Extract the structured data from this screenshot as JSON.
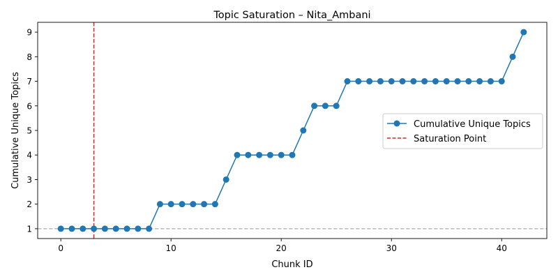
{
  "chart_data": {
    "type": "line",
    "title": "Topic Saturation – Nita_Ambani",
    "xlabel": "Chunk ID",
    "ylabel": "Cumulative Unique Topics",
    "xlim": [
      -2.1,
      44.1
    ],
    "ylim": [
      0.6,
      9.4
    ],
    "xticks": [
      0,
      10,
      20,
      30,
      40
    ],
    "yticks": [
      1,
      2,
      3,
      4,
      5,
      6,
      7,
      8,
      9
    ],
    "grid": false,
    "legend_position": "center-right",
    "series": [
      {
        "name": "Cumulative Unique Topics",
        "color": "#1f77b4",
        "marker": "circle",
        "x": [
          0,
          1,
          2,
          3,
          4,
          5,
          6,
          7,
          8,
          9,
          10,
          11,
          12,
          13,
          14,
          15,
          16,
          17,
          18,
          19,
          20,
          21,
          22,
          23,
          24,
          25,
          26,
          27,
          28,
          29,
          30,
          31,
          32,
          33,
          34,
          35,
          36,
          37,
          38,
          39,
          40,
          41,
          42
        ],
        "y": [
          1,
          1,
          1,
          1,
          1,
          1,
          1,
          1,
          1,
          2,
          2,
          2,
          2,
          2,
          2,
          3,
          4,
          4,
          4,
          4,
          4,
          4,
          5,
          6,
          6,
          6,
          7,
          7,
          7,
          7,
          7,
          7,
          7,
          7,
          7,
          7,
          7,
          7,
          7,
          7,
          7,
          8,
          9
        ]
      }
    ],
    "reference_lines": [
      {
        "name": "Saturation Point",
        "orientation": "vertical",
        "x": 3,
        "color": "#d62728",
        "style": "dashed",
        "in_legend": true
      },
      {
        "orientation": "horizontal",
        "y": 1,
        "color": "#bbbbbb",
        "style": "dashed",
        "in_legend": false
      }
    ]
  }
}
